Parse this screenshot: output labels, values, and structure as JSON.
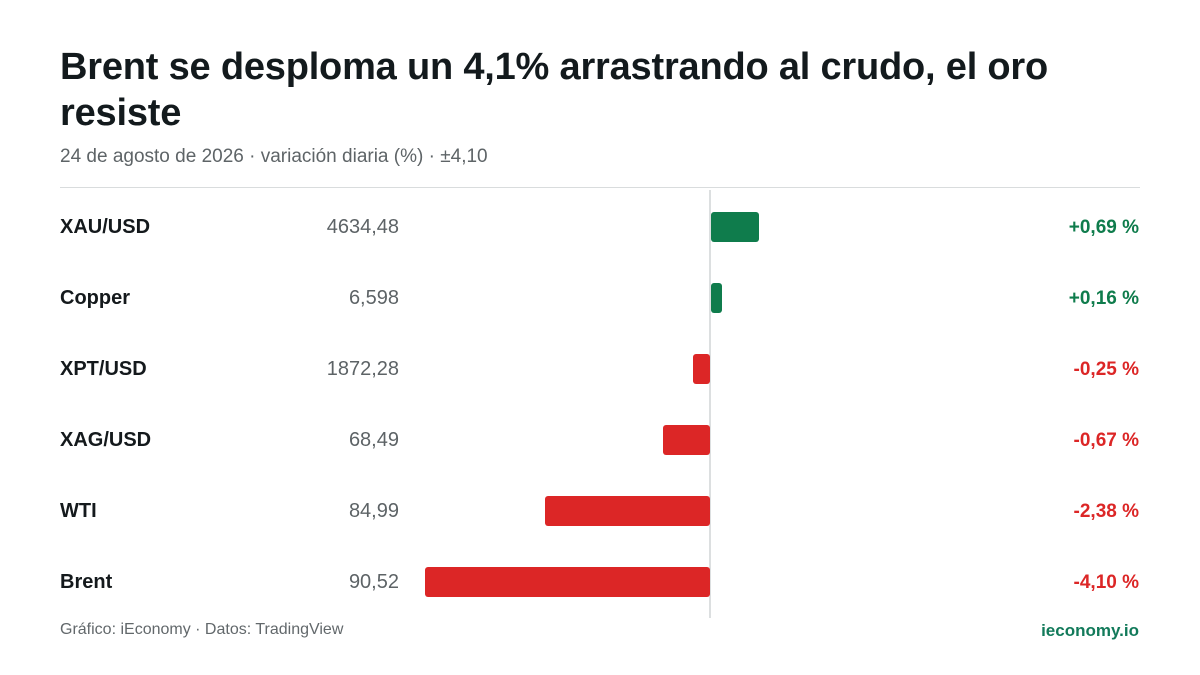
{
  "title": "Brent se desploma un 4,1%  arrastrando al crudo, el oro resiste",
  "subtitle": "24 de agosto de 2026 · variación diaria (%) · ±4,10",
  "footer": {
    "credit": "Gráfico: iEconomy · Datos: TradingView",
    "site": "ieconomy.io"
  },
  "colors": {
    "positive": "#0f7c4c",
    "negative": "#dc2626"
  },
  "chart_data": {
    "type": "bar",
    "orientation": "horizontal",
    "scale_max_abs": 4.1,
    "categories": [
      "XAU/USD",
      "Copper",
      "XPT/USD",
      "XAG/USD",
      "WTI",
      "Brent"
    ],
    "values": [
      0.69,
      0.16,
      -0.25,
      -0.67,
      -2.38,
      -4.1
    ],
    "prices": [
      "4634,48",
      "6,598",
      "1872,28",
      "68,49",
      "84,99",
      "90,52"
    ],
    "change_labels": [
      "+0,69 %",
      "+0,16 %",
      "-0,25 %",
      "-0,67 %",
      "-2,38 %",
      "-4,10 %"
    ]
  }
}
